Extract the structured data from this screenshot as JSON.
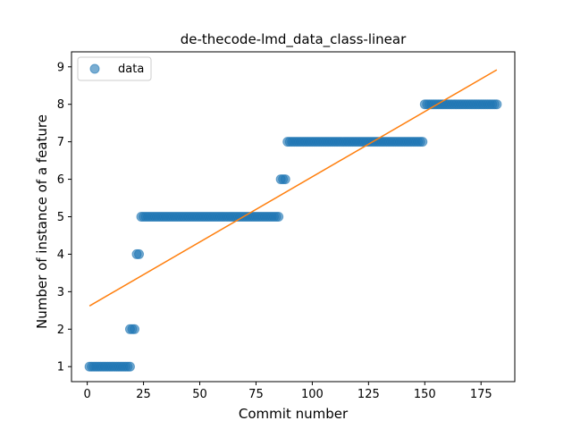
{
  "chart_data": {
    "type": "scatter",
    "title": "de-thecode-lmd_data_class-linear",
    "xlabel": "Commit number",
    "ylabel": "Number of instance of a feature",
    "xlim": [
      -7,
      190
    ],
    "ylim": [
      0.6,
      9.4
    ],
    "xticks": [
      0,
      25,
      50,
      75,
      100,
      125,
      150,
      175
    ],
    "yticks": [
      1,
      2,
      3,
      4,
      5,
      6,
      7,
      8,
      9
    ],
    "legend_position": "top-left",
    "colors": {
      "data": "#1f77b4",
      "fit": "#ff7f0e"
    },
    "series": [
      {
        "name": "data",
        "kind": "scatter",
        "segments": [
          {
            "x_start": 1,
            "x_end": 19,
            "y": 1
          },
          {
            "x_start": 19,
            "x_end": 21,
            "y": 2
          },
          {
            "x_start": 22,
            "x_end": 23,
            "y": 4
          },
          {
            "x_start": 24,
            "x_end": 85,
            "y": 5
          },
          {
            "x_start": 86,
            "x_end": 88,
            "y": 6
          },
          {
            "x_start": 89,
            "x_end": 149,
            "y": 7
          },
          {
            "x_start": 150,
            "x_end": 182,
            "y": 8
          }
        ]
      },
      {
        "kind": "line",
        "x": [
          1,
          182
        ],
        "y": [
          2.62,
          8.92
        ]
      }
    ]
  }
}
